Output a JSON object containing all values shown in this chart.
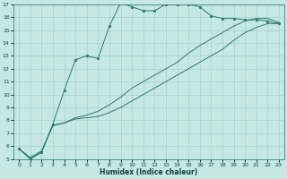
{
  "xlabel": "Humidex (Indice chaleur)",
  "bg_color": "#c5e8e5",
  "grid_color": "#a8d0cc",
  "line_color": "#2a7a6a",
  "xlim": [
    -0.5,
    23.5
  ],
  "ylim": [
    5,
    17
  ],
  "xticks": [
    0,
    1,
    2,
    3,
    4,
    5,
    6,
    7,
    8,
    9,
    10,
    11,
    12,
    13,
    14,
    15,
    16,
    17,
    18,
    19,
    20,
    21,
    22,
    23
  ],
  "yticks": [
    5,
    6,
    7,
    8,
    9,
    10,
    11,
    12,
    13,
    14,
    15,
    16,
    17
  ],
  "main_x": [
    0,
    1,
    2,
    3,
    4,
    5,
    6,
    7,
    8,
    9,
    10,
    11,
    12,
    13,
    14,
    15,
    16,
    17,
    18,
    19,
    20,
    21,
    22,
    23
  ],
  "main_y": [
    5.8,
    5.0,
    5.5,
    7.7,
    10.3,
    12.7,
    13.0,
    12.8,
    15.3,
    17.1,
    16.8,
    16.5,
    16.5,
    17.0,
    17.0,
    17.0,
    16.8,
    16.1,
    15.9,
    15.9,
    15.8,
    15.8,
    15.7,
    15.5
  ],
  "line2_x": [
    0,
    1,
    2,
    3,
    4,
    5,
    6,
    7,
    8,
    9,
    10,
    11,
    12,
    13,
    14,
    15,
    16,
    17,
    18,
    19,
    20,
    21,
    22,
    23
  ],
  "line2_y": [
    5.8,
    5.1,
    5.6,
    7.6,
    7.8,
    8.1,
    8.2,
    8.3,
    8.6,
    9.0,
    9.5,
    10.0,
    10.5,
    11.0,
    11.5,
    12.0,
    12.5,
    13.0,
    13.5,
    14.2,
    14.8,
    15.2,
    15.5,
    15.5
  ],
  "line3_x": [
    0,
    1,
    2,
    3,
    4,
    5,
    6,
    7,
    8,
    9,
    10,
    11,
    12,
    13,
    14,
    15,
    16,
    17,
    18,
    19,
    20,
    21,
    22,
    23
  ],
  "line3_y": [
    5.8,
    5.1,
    5.6,
    7.6,
    7.8,
    8.2,
    8.4,
    8.7,
    9.2,
    9.8,
    10.5,
    11.0,
    11.5,
    12.0,
    12.5,
    13.2,
    13.8,
    14.3,
    14.8,
    15.3,
    15.7,
    15.9,
    15.9,
    15.6
  ]
}
